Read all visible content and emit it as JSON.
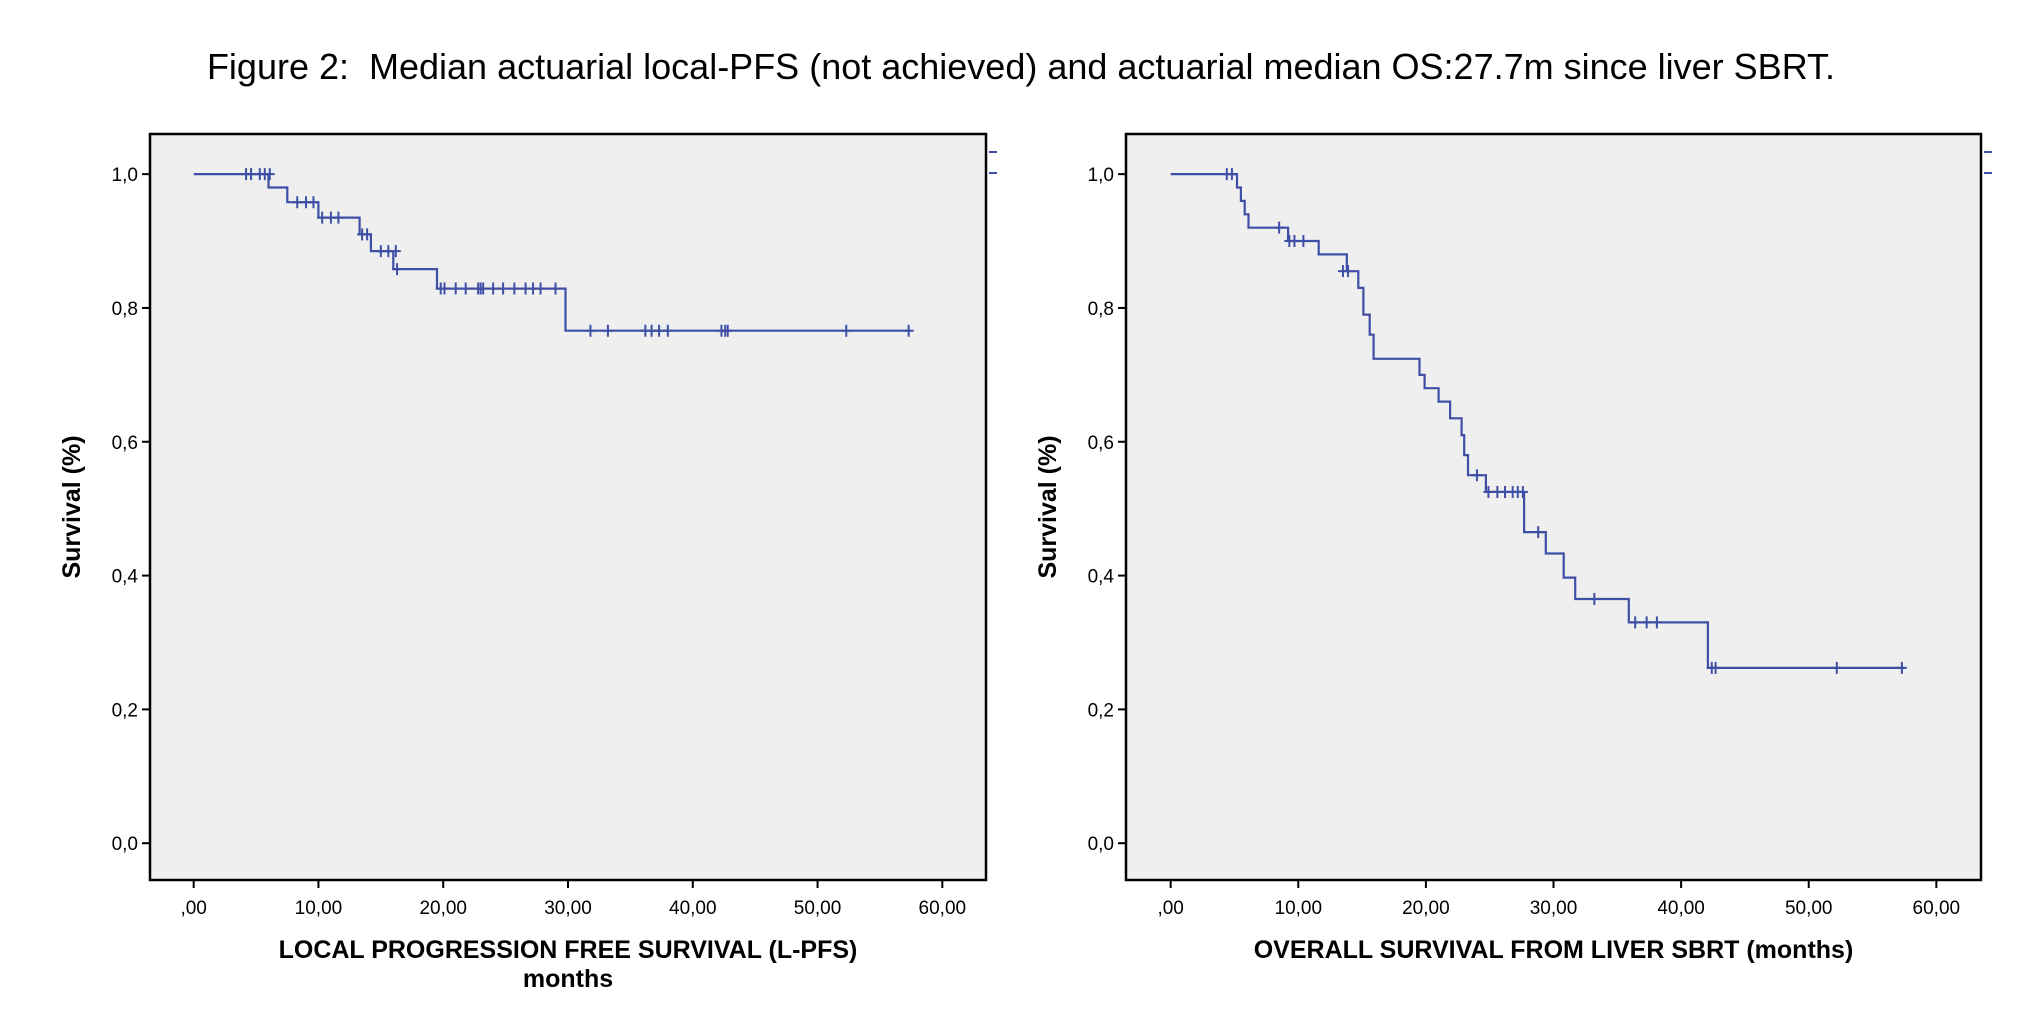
{
  "figure": {
    "title": "Figure 2:  Median actuarial local-PFS (not achieved) and actuarial median OS:27.7m since liver SBRT."
  },
  "colors": {
    "curve": "#3f4fa6",
    "plot_background": "#efefef",
    "frame": "#000000"
  },
  "chart_data": [
    {
      "type": "line",
      "subtype": "kaplan-meier-step",
      "title": "",
      "xlabel": "LOCAL PROGRESSION FREE SURVIVAL (L-PFS)",
      "xlabel_line2": "months",
      "ylabel": "Survival (%)",
      "xlim": [
        -3.5,
        63.5
      ],
      "ylim": [
        -0.055,
        1.06
      ],
      "x_ticks": [
        0,
        10,
        20,
        30,
        40,
        50,
        60
      ],
      "x_tick_labels": [
        ",00",
        "10,00",
        "20,00",
        "30,00",
        "40,00",
        "50,00",
        "60,00"
      ],
      "y_ticks": [
        0,
        0.2,
        0.4,
        0.6,
        0.8,
        1.0
      ],
      "y_tick_labels": [
        "0,0",
        "0,2",
        "0,4",
        "0,6",
        "0,8",
        "1,0"
      ],
      "grid": false,
      "series": [
        {
          "steps": [
            [
              0,
              1.0
            ],
            [
              6.0,
              0.98
            ],
            [
              7.5,
              0.958
            ],
            [
              10.0,
              0.935
            ],
            [
              13.3,
              0.91
            ],
            [
              14.2,
              0.885
            ],
            [
              16.0,
              0.858
            ],
            [
              19.5,
              0.829
            ],
            [
              29.8,
              0.766
            ],
            [
              57.5,
              0.766
            ]
          ],
          "censored": [
            [
              4.2,
              1.0
            ],
            [
              4.6,
              1.0
            ],
            [
              5.3,
              1.0
            ],
            [
              5.7,
              1.0
            ],
            [
              6.1,
              1.0
            ],
            [
              8.3,
              0.958
            ],
            [
              9.0,
              0.958
            ],
            [
              9.6,
              0.958
            ],
            [
              10.3,
              0.935
            ],
            [
              11.0,
              0.935
            ],
            [
              11.6,
              0.935
            ],
            [
              13.5,
              0.91
            ],
            [
              13.9,
              0.91
            ],
            [
              15.0,
              0.885
            ],
            [
              15.6,
              0.885
            ],
            [
              16.2,
              0.885
            ],
            [
              16.3,
              0.858
            ],
            [
              19.8,
              0.829
            ],
            [
              20.1,
              0.829
            ],
            [
              21.0,
              0.829
            ],
            [
              21.8,
              0.829
            ],
            [
              22.8,
              0.829
            ],
            [
              23.0,
              0.829
            ],
            [
              23.2,
              0.829
            ],
            [
              24.0,
              0.829
            ],
            [
              24.8,
              0.829
            ],
            [
              25.7,
              0.829
            ],
            [
              26.6,
              0.829
            ],
            [
              27.2,
              0.829
            ],
            [
              27.8,
              0.829
            ],
            [
              29.0,
              0.829
            ],
            [
              31.8,
              0.766
            ],
            [
              33.2,
              0.766
            ],
            [
              36.2,
              0.766
            ],
            [
              36.7,
              0.766
            ],
            [
              37.3,
              0.766
            ],
            [
              38.0,
              0.766
            ],
            [
              42.3,
              0.766
            ],
            [
              42.6,
              0.766
            ],
            [
              42.8,
              0.766
            ],
            [
              52.3,
              0.766
            ],
            [
              57.3,
              0.766
            ]
          ]
        }
      ]
    },
    {
      "type": "line",
      "subtype": "kaplan-meier-step",
      "title": "",
      "xlabel": "OVERALL SURVIVAL FROM LIVER SBRT (months)",
      "ylabel": "Survival (%)",
      "xlim": [
        -3.5,
        63.5
      ],
      "ylim": [
        -0.055,
        1.06
      ],
      "x_ticks": [
        0,
        10,
        20,
        30,
        40,
        50,
        60
      ],
      "x_tick_labels": [
        ",00",
        "10,00",
        "20,00",
        "30,00",
        "40,00",
        "50,00",
        "60,00"
      ],
      "y_ticks": [
        0,
        0.2,
        0.4,
        0.6,
        0.8,
        1.0
      ],
      "y_tick_labels": [
        "0,0",
        "0,2",
        "0,4",
        "0,6",
        "0,8",
        "1,0"
      ],
      "grid": false,
      "series": [
        {
          "steps": [
            [
              0,
              1.0
            ],
            [
              5.2,
              0.98
            ],
            [
              5.5,
              0.96
            ],
            [
              5.8,
              0.94
            ],
            [
              6.1,
              0.92
            ],
            [
              9.2,
              0.9
            ],
            [
              11.6,
              0.88
            ],
            [
              13.8,
              0.855
            ],
            [
              14.7,
              0.83
            ],
            [
              15.1,
              0.79
            ],
            [
              15.6,
              0.76
            ],
            [
              15.9,
              0.724
            ],
            [
              19.5,
              0.7
            ],
            [
              19.9,
              0.68
            ],
            [
              21.0,
              0.66
            ],
            [
              21.9,
              0.635
            ],
            [
              22.8,
              0.61
            ],
            [
              23.0,
              0.58
            ],
            [
              23.3,
              0.55
            ],
            [
              24.7,
              0.525
            ],
            [
              27.7,
              0.465
            ],
            [
              29.4,
              0.433
            ],
            [
              30.8,
              0.397
            ],
            [
              31.7,
              0.365
            ],
            [
              35.9,
              0.33
            ],
            [
              42.1,
              0.262
            ],
            [
              57.5,
              0.262
            ]
          ],
          "censored": [
            [
              4.4,
              1.0
            ],
            [
              4.8,
              1.0
            ],
            [
              8.5,
              0.92
            ],
            [
              9.3,
              0.9
            ],
            [
              9.7,
              0.9
            ],
            [
              10.4,
              0.9
            ],
            [
              13.5,
              0.855
            ],
            [
              13.9,
              0.855
            ],
            [
              24.0,
              0.55
            ],
            [
              24.9,
              0.525
            ],
            [
              25.6,
              0.525
            ],
            [
              26.2,
              0.525
            ],
            [
              26.8,
              0.525
            ],
            [
              27.2,
              0.525
            ],
            [
              27.6,
              0.525
            ],
            [
              28.8,
              0.465
            ],
            [
              33.2,
              0.365
            ],
            [
              36.4,
              0.33
            ],
            [
              37.3,
              0.33
            ],
            [
              38.1,
              0.33
            ],
            [
              42.4,
              0.262
            ],
            [
              42.7,
              0.262
            ],
            [
              52.2,
              0.262
            ],
            [
              57.3,
              0.262
            ]
          ]
        }
      ]
    }
  ]
}
